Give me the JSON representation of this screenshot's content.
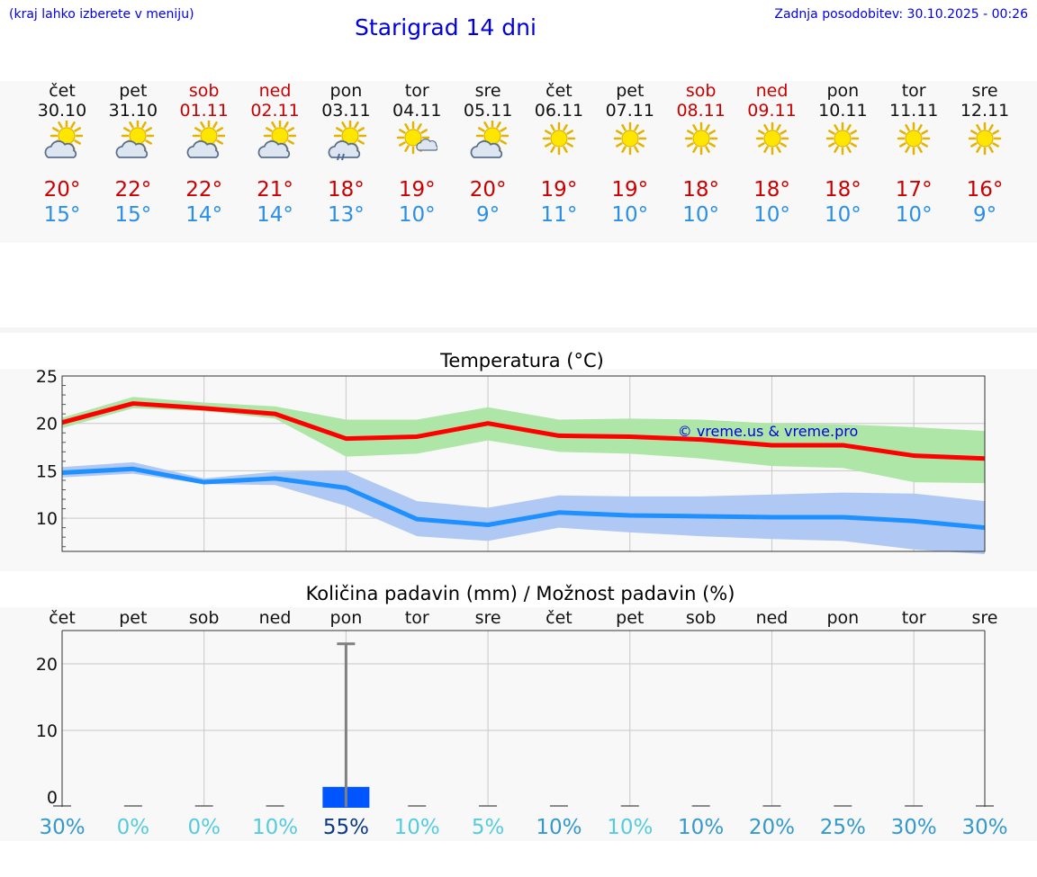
{
  "header": {
    "menu_hint": "(kraj lahko izberete v meniju)",
    "title": "Starigrad 14 dni",
    "updated": "Zadnja posodobitev: 30.10.2025 - 00:26"
  },
  "colors": {
    "link": "#0000ee",
    "weekend": "#cc0000",
    "t_max": "#cc0000",
    "t_min": "#2a8fe8",
    "max_line": "#ff0000",
    "max_band": "#aee6a8",
    "min_line": "#1e90ff",
    "min_band": "#b0c8f4",
    "rain_bar": "#0055ff"
  },
  "days": [
    {
      "name": "čet",
      "date": "30.10",
      "weekend": false,
      "icon": "sun-behind-cloud-icon",
      "tmax": "20°",
      "tmin": "15°"
    },
    {
      "name": "pet",
      "date": "31.10",
      "weekend": false,
      "icon": "sun-behind-cloud-icon",
      "tmax": "22°",
      "tmin": "15°"
    },
    {
      "name": "sob",
      "date": "01.11",
      "weekend": true,
      "icon": "sun-behind-cloud-icon",
      "tmax": "22°",
      "tmin": "14°"
    },
    {
      "name": "ned",
      "date": "02.11",
      "weekend": true,
      "icon": "sun-behind-cloud-icon",
      "tmax": "21°",
      "tmin": "14°"
    },
    {
      "name": "pon",
      "date": "03.11",
      "weekend": false,
      "icon": "sun-cloud-rain-icon",
      "tmax": "18°",
      "tmin": "13°"
    },
    {
      "name": "tor",
      "date": "04.11",
      "weekend": false,
      "icon": "sun-small-cloud-icon",
      "tmax": "19°",
      "tmin": "10°"
    },
    {
      "name": "sre",
      "date": "05.11",
      "weekend": false,
      "icon": "sun-behind-cloud-icon",
      "tmax": "20°",
      "tmin": "9°"
    },
    {
      "name": "čet",
      "date": "06.11",
      "weekend": false,
      "icon": "sun-icon",
      "tmax": "19°",
      "tmin": "11°"
    },
    {
      "name": "pet",
      "date": "07.11",
      "weekend": false,
      "icon": "sun-icon",
      "tmax": "19°",
      "tmin": "10°"
    },
    {
      "name": "sob",
      "date": "08.11",
      "weekend": true,
      "icon": "sun-icon",
      "tmax": "18°",
      "tmin": "10°"
    },
    {
      "name": "ned",
      "date": "09.11",
      "weekend": true,
      "icon": "sun-icon",
      "tmax": "18°",
      "tmin": "10°"
    },
    {
      "name": "pon",
      "date": "10.11",
      "weekend": false,
      "icon": "sun-icon",
      "tmax": "18°",
      "tmin": "10°"
    },
    {
      "name": "tor",
      "date": "11.11",
      "weekend": false,
      "icon": "sun-icon",
      "tmax": "17°",
      "tmin": "10°"
    },
    {
      "name": "sre",
      "date": "12.11",
      "weekend": false,
      "icon": "sun-icon",
      "tmax": "16°",
      "tmin": "9°"
    }
  ],
  "chart_data": [
    {
      "type": "line",
      "title": "Temperatura (°C)",
      "xlabel": "",
      "ylabel": "",
      "x": [
        0,
        1,
        2,
        3,
        4,
        5,
        6,
        7,
        8,
        9,
        10,
        11,
        12,
        13
      ],
      "ylim": [
        6.5,
        25
      ],
      "yticks": [
        10,
        15,
        20,
        25
      ],
      "grid": true,
      "annotation": "© vreme.us & vreme.pro",
      "series": [
        {
          "name": "max",
          "values": [
            20.1,
            22.1,
            21.6,
            21.0,
            18.4,
            18.6,
            20.0,
            18.7,
            18.6,
            18.3,
            17.7,
            17.7,
            16.6,
            16.3
          ],
          "band_low": [
            19.5,
            21.6,
            21.3,
            20.5,
            16.5,
            16.8,
            18.2,
            17.0,
            16.8,
            16.3,
            15.5,
            15.3,
            13.8,
            13.7
          ],
          "band_high": [
            20.6,
            22.8,
            22.2,
            21.8,
            20.4,
            20.4,
            21.7,
            20.4,
            20.5,
            20.4,
            20.0,
            19.9,
            19.6,
            19.2
          ]
        },
        {
          "name": "min",
          "values": [
            14.8,
            15.2,
            13.8,
            14.2,
            13.2,
            9.9,
            9.3,
            10.6,
            10.3,
            10.2,
            10.1,
            10.1,
            9.7,
            9.0
          ],
          "band_low": [
            14.3,
            14.7,
            13.6,
            13.5,
            11.3,
            8.1,
            7.6,
            9.0,
            8.5,
            8.1,
            7.8,
            7.6,
            6.7,
            6.2
          ],
          "band_high": [
            15.4,
            15.9,
            14.2,
            14.9,
            15.0,
            11.8,
            11.1,
            12.4,
            12.3,
            12.3,
            12.5,
            12.7,
            12.6,
            11.8
          ]
        }
      ]
    },
    {
      "type": "bar",
      "title": "Količina padavin (mm) / Možnost padavin (%)",
      "categories": [
        "čet",
        "pet",
        "sob",
        "ned",
        "pon",
        "tor",
        "sre",
        "čet",
        "pet",
        "sob",
        "ned",
        "pon",
        "tor",
        "sre"
      ],
      "xlabel": "",
      "ylabel": "",
      "ylim": [
        -1.5,
        25
      ],
      "yticks": [
        0,
        10,
        20
      ],
      "grid": true,
      "series": [
        {
          "name": "amount_mm",
          "values": [
            0,
            0,
            0,
            0,
            1.5,
            0,
            0,
            0,
            0,
            0,
            0,
            0,
            0,
            0
          ]
        },
        {
          "name": "amount_max_mm",
          "values": [
            0,
            0,
            0,
            0,
            23,
            0,
            0,
            0,
            0,
            0,
            0,
            0,
            0,
            0
          ]
        }
      ],
      "probability_pct": [
        "30%",
        "0%",
        "0%",
        "10%",
        "55%",
        "10%",
        "5%",
        "10%",
        "10%",
        "10%",
        "20%",
        "25%",
        "30%",
        "30%"
      ],
      "probability_colors": [
        "#3399cc",
        "#55ccdd",
        "#55ccdd",
        "#55ccdd",
        "#0a3a88",
        "#55ccdd",
        "#55ccdd",
        "#3399cc",
        "#55ccdd",
        "#3399cc",
        "#3399cc",
        "#3399cc",
        "#3399cc",
        "#3399cc"
      ]
    }
  ]
}
